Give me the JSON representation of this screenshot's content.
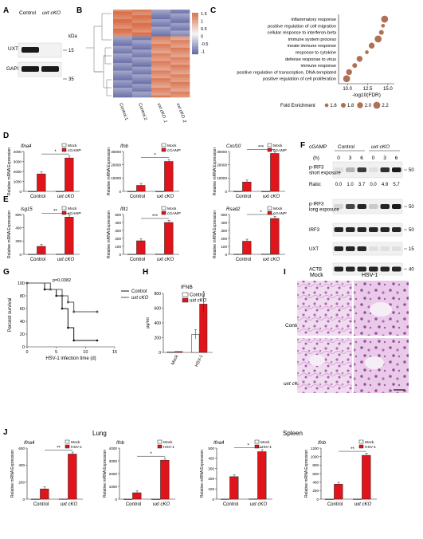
{
  "panel_letters": [
    "A",
    "B",
    "C",
    "D",
    "E",
    "F",
    "G",
    "H",
    "I",
    "J"
  ],
  "panelA": {
    "col_labels": [
      "Control",
      "uxt cKO"
    ],
    "unit": "kDa",
    "rows": [
      {
        "name": "UXT",
        "marker": "15"
      },
      {
        "name": "GAPDH",
        "marker": "35"
      }
    ]
  },
  "panelB": {
    "scale_ticks": [
      "1.5",
      "1",
      "0.5",
      "0",
      "-0.5",
      "-1"
    ],
    "col_labels": [
      "Control.1",
      "Control.2",
      "uxt cKO .1",
      "uxt cKO .2"
    ],
    "colors": {
      "high": "#d9704a",
      "mid": "#f4f4f4",
      "low": "#5a5fa0"
    }
  },
  "panelC": {
    "terms": [
      "inflammatory response",
      "positive regulation of cell migration",
      "cellular response to interferon-beta",
      "immune system process",
      "innate immune response",
      "response to cytokine",
      "defense response to virus",
      "immune response",
      "positive regulation of transcription, DNA-templated",
      "positive regulation of cell proliferation"
    ],
    "x_values": [
      14.6,
      14.4,
      14.2,
      13.8,
      13.0,
      12.4,
      11.5,
      10.9,
      10.2,
      9.9
    ],
    "enrichment": [
      2.2,
      1.6,
      1.8,
      2.2,
      2.0,
      1.6,
      2.0,
      1.8,
      2.0,
      2.2
    ],
    "x_ticks": [
      "10.0",
      "12.5",
      "15.0"
    ],
    "x_label": "-log10(FDR)",
    "legend_title": "Fold Enrichment",
    "legend_items": [
      "1.6",
      "1.8",
      "2.0",
      "2.2"
    ],
    "dot_color": "#b07055"
  },
  "legend_cgamp": [
    "Mock",
    "cGAMP"
  ],
  "legend_hsv": [
    "Mock",
    "HSV-1"
  ],
  "bar_colors": {
    "mock": "#ffffff",
    "treat": "#e0141b"
  },
  "chart_data": [
    {
      "panel": "D",
      "type": "bar",
      "title": "Ifna4",
      "ylabel": "Relative mRNA Expression",
      "categories": [
        "Control",
        "uxt cKO"
      ],
      "series": [
        {
          "name": "Mock",
          "values": [
            1.5,
            2
          ]
        },
        {
          "name": "cGAMP",
          "values": [
            1750,
            3350
          ]
        }
      ],
      "ylim": [
        0,
        4000
      ],
      "yticks": [
        "0",
        "1000",
        "2000",
        "3000",
        "4000"
      ],
      "sig": "*"
    },
    {
      "panel": "D",
      "type": "bar",
      "title": "Ifnb",
      "ylabel": "Relative mRNA Expression",
      "categories": [
        "Control",
        "uxt cKO"
      ],
      "series": [
        {
          "name": "Mock",
          "values": [
            1,
            2
          ]
        },
        {
          "name": "cGAMP",
          "values": [
            4500,
            22500
          ]
        }
      ],
      "ylim": [
        0,
        30000
      ],
      "yticks": [
        "0",
        "10000",
        "20000",
        "30000"
      ],
      "sig": "*"
    },
    {
      "panel": "D",
      "type": "bar",
      "title": "Cxcl10",
      "ylabel": "Relative mRNA Expression",
      "categories": [
        "Control",
        "uxt cKO"
      ],
      "series": [
        {
          "name": "Mock",
          "values": [
            2,
            2
          ]
        },
        {
          "name": "cGAMP",
          "values": [
            7000,
            28500
          ]
        }
      ],
      "ylim": [
        0,
        30000
      ],
      "yticks": [
        "0",
        "10000",
        "20000",
        "30000"
      ],
      "sig": "***"
    },
    {
      "panel": "E",
      "type": "bar",
      "title": "Isg15",
      "ylabel": "Relative mRNA Expression",
      "categories": [
        "Control",
        "uxt cKO"
      ],
      "series": [
        {
          "name": "Mock",
          "values": [
            2,
            3
          ]
        },
        {
          "name": "cGAMP",
          "values": [
            120,
            560
          ]
        }
      ],
      "ylim": [
        0,
        600
      ],
      "yticks": [
        "0",
        "200",
        "400",
        "600"
      ],
      "sig": "**"
    },
    {
      "panel": "E",
      "type": "bar",
      "title": "Ifit1",
      "ylabel": "Relative mRNA Expression",
      "categories": [
        "Control",
        "uxt cKO"
      ],
      "series": [
        {
          "name": "Mock",
          "values": [
            2,
            3
          ]
        },
        {
          "name": "cGAMP",
          "values": [
            170,
            400
          ]
        }
      ],
      "ylim": [
        0,
        500
      ],
      "yticks": [
        "0",
        "100",
        "200",
        "300",
        "400",
        "500"
      ],
      "sig": "***"
    },
    {
      "panel": "E",
      "type": "bar",
      "title": "Rsad2",
      "ylabel": "Relative mRNA Expression",
      "categories": [
        "Control",
        "uxt cKO"
      ],
      "series": [
        {
          "name": "Mock",
          "values": [
            2,
            3
          ]
        },
        {
          "name": "cGAMP",
          "values": [
            165,
            450
          ]
        }
      ],
      "ylim": [
        0,
        500
      ],
      "yticks": [
        "0",
        "100",
        "200",
        "300",
        "400",
        "500"
      ],
      "sig": "*"
    },
    {
      "panel": "G",
      "type": "line",
      "ylabel": "Percent survival",
      "xlabel": "HSV-1 infection time (d)",
      "pvalue": "p=0.0382",
      "x_ticks": [
        "0",
        "5",
        "10",
        "15"
      ],
      "y_ticks": [
        "0",
        "20",
        "40",
        "60",
        "80",
        "100"
      ],
      "xlim": [
        0,
        15
      ],
      "ylim": [
        0,
        100
      ],
      "series": [
        {
          "name": "Control",
          "x": [
            0,
            3,
            5,
            6,
            7,
            8,
            12
          ],
          "y": [
            100,
            90,
            80,
            60,
            30,
            10,
            10
          ]
        },
        {
          "name": "uxt cKO",
          "x": [
            0,
            4,
            6,
            7,
            8,
            12
          ],
          "y": [
            100,
            90,
            80,
            70,
            55,
            55
          ]
        }
      ]
    },
    {
      "panel": "H",
      "type": "bar",
      "title": "IFNB",
      "ylabel": "pg/ml",
      "categories": [
        "Mock",
        "HSV-1"
      ],
      "series": [
        {
          "name": "Control",
          "values": [
            8,
            245
          ]
        },
        {
          "name": "uxt cKO",
          "values": [
            12,
            655
          ]
        }
      ],
      "ylim": [
        0,
        800
      ],
      "yticks": [
        "0",
        "200",
        "400",
        "600",
        "800"
      ],
      "sig": "*"
    },
    {
      "panel": "J",
      "type": "bar",
      "title": "Ifna4",
      "ylabel": "Relative mRNA Expression",
      "categories": [
        "Control",
        "uxt cKO"
      ],
      "series": [
        {
          "name": "Mock",
          "values": [
            1,
            2
          ]
        },
        {
          "name": "HSV-1",
          "values": [
            120,
            530
          ]
        }
      ],
      "ylim": [
        0,
        600
      ],
      "yticks": [
        "0",
        "200",
        "400",
        "600"
      ],
      "sig": "**"
    },
    {
      "panel": "J",
      "type": "bar",
      "title": "Ifnb",
      "ylabel": "Relative mRNA Expression",
      "categories": [
        "Control",
        "uxt cKO"
      ],
      "series": [
        {
          "name": "Mock",
          "values": [
            1,
            2
          ]
        },
        {
          "name": "HSV-1",
          "values": [
            500,
            3050
          ]
        }
      ],
      "ylim": [
        0,
        4000
      ],
      "yticks": [
        "0",
        "1000",
        "2000",
        "3000",
        "4000"
      ],
      "sig": "*"
    },
    {
      "panel": "J",
      "type": "bar",
      "title": "Ifna4",
      "ylabel": "Relative mRNA Expression",
      "categories": [
        "Control",
        "uxt cKO"
      ],
      "series": [
        {
          "name": "Mock",
          "values": [
            1,
            2
          ]
        },
        {
          "name": "HSV-1",
          "values": [
            220,
            465
          ]
        }
      ],
      "ylim": [
        0,
        500
      ],
      "yticks": [
        "0",
        "100",
        "200",
        "300",
        "400",
        "500"
      ],
      "sig": "*"
    },
    {
      "panel": "J",
      "type": "bar",
      "title": "Ifnb",
      "ylabel": "Relative mRNA Expression",
      "categories": [
        "Control",
        "uxt cKO"
      ],
      "series": [
        {
          "name": "Mock",
          "values": [
            1,
            2
          ]
        },
        {
          "name": "HSV-1",
          "values": [
            350,
            1030
          ]
        }
      ],
      "ylim": [
        0,
        1200
      ],
      "yticks": [
        "0",
        "200",
        "400",
        "600",
        "800",
        "1000",
        "1200"
      ],
      "sig": "**"
    }
  ],
  "panelF": {
    "cgamp_label": "cGAMP",
    "groups": [
      "Control",
      "uxt cKO"
    ],
    "h_label": "(h)",
    "times": [
      "0",
      "3",
      "6",
      "0",
      "3",
      "6"
    ],
    "ratio_label": "Ratio:",
    "ratios": [
      "0.0",
      "1.0",
      "3.7",
      "0.0",
      "4.9",
      "5.7"
    ],
    "rows": [
      {
        "name": "p-IRF3\nshort exposure",
        "marker": "50",
        "intensity": [
          0.05,
          0.25,
          0.8,
          0.05,
          0.85,
          0.95
        ]
      },
      {
        "name": "p-IRF3\nlong exposure",
        "marker": "50",
        "intensity": [
          0.1,
          0.75,
          0.9,
          0.15,
          0.9,
          0.95
        ]
      },
      {
        "name": "IRF3",
        "marker": "50",
        "intensity": [
          0.9,
          0.9,
          0.9,
          0.9,
          0.9,
          0.9
        ]
      },
      {
        "name": "UXT",
        "marker": "15",
        "intensity": [
          0.9,
          0.9,
          0.9,
          0.05,
          0.05,
          0.05
        ]
      },
      {
        "name": "ACTB",
        "marker": "40",
        "intensity": [
          0.9,
          0.9,
          0.9,
          0.9,
          0.9,
          0.9
        ]
      }
    ]
  },
  "panelI": {
    "col_labels": [
      "Mock",
      "HSV-1"
    ],
    "row_labels": [
      "Control",
      "uxt cKO"
    ],
    "tissue_color": "#c98ac9"
  },
  "panelJ": {
    "group_labels": [
      "Lung",
      "Spleen"
    ]
  }
}
